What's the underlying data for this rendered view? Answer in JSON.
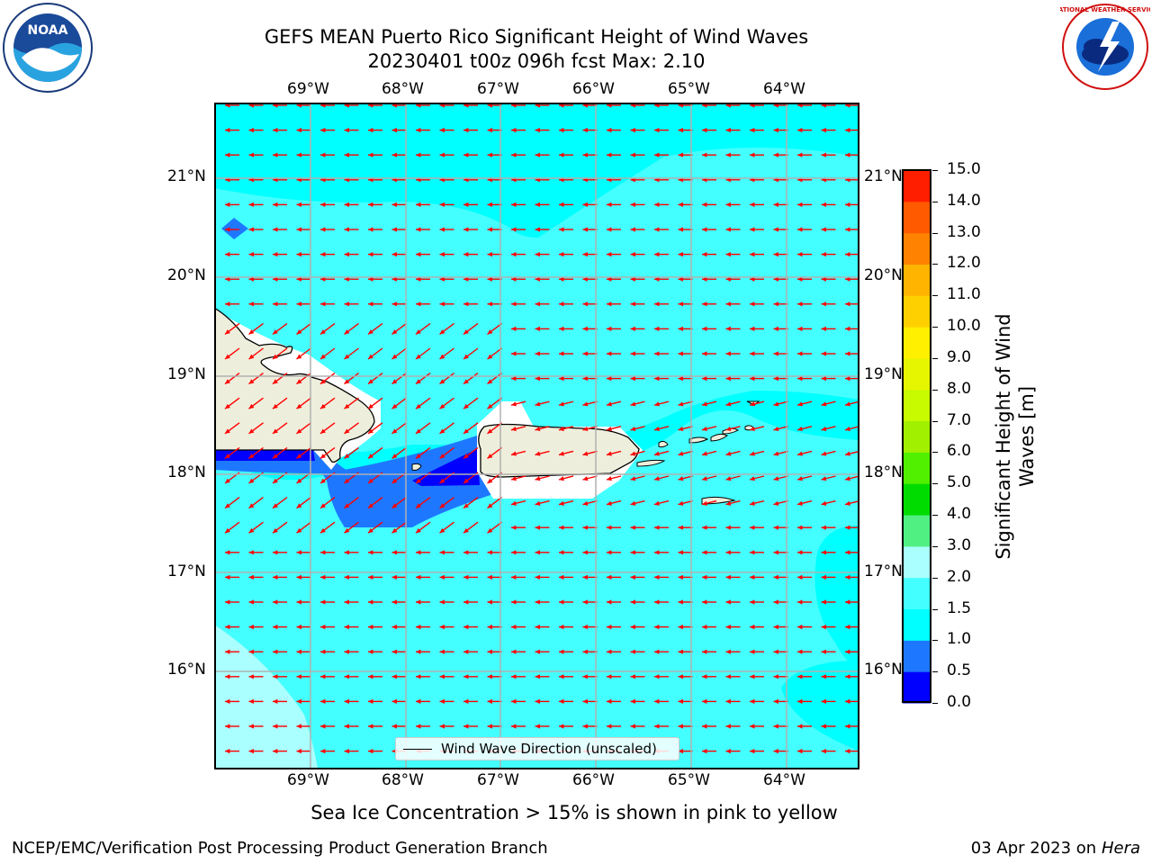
{
  "header": {
    "title_line1": "GEFS MEAN Puerto Rico Significant Height of Wind Waves",
    "title_line2": "20230401 t00z 096h fcst   Max: 2.10"
  },
  "logos": {
    "left": {
      "name": "NOAA",
      "ring_text": "NATIONAL OCEANIC AND ATMOSPHERIC ADMINISTRATION · U.S. DEPARTMENT OF COMMERCE"
    },
    "right": {
      "name": "NATIONAL WEATHER SERVICE"
    }
  },
  "map": {
    "lon_labels": [
      "69°W",
      "68°W",
      "67°W",
      "66°W",
      "65°W",
      "64°W"
    ],
    "lat_labels": [
      "21°N",
      "20°N",
      "19°N",
      "18°N",
      "17°N",
      "16°N"
    ],
    "legend_label": "Wind Wave Direction (unscaled)",
    "colors": {
      "land": "#eeeedc",
      "arrow": "#ff0000",
      "ocean_1_0_1_5": "#00ffff",
      "ocean_1_5_2_0": "#44ffff",
      "ocean_2_0_3_0": "#aaffff",
      "ocean_0_5_1_0": "#1e78ff",
      "ocean_0_0_0_5": "#0000ff"
    }
  },
  "colorbar": {
    "title": "Significant Height of Wind Waves [m]",
    "title_line1": "Significant Height of Wind",
    "title_line2": "Waves [m]",
    "tick_labels": [
      "0.0",
      "0.5",
      "1.0",
      "1.5",
      "2.0",
      "3.0",
      "4.0",
      "5.0",
      "6.0",
      "7.0",
      "8.0",
      "9.0",
      "10.0",
      "11.0",
      "12.0",
      "13.0",
      "14.0",
      "15.0"
    ],
    "colors": [
      "#0000ff",
      "#1e78ff",
      "#00ffff",
      "#44ffff",
      "#aaffff",
      "#50f082",
      "#00dc00",
      "#50f000",
      "#a0f000",
      "#c8fa00",
      "#e6f500",
      "#fff000",
      "#ffd000",
      "#ffb400",
      "#ff8200",
      "#ff5a00",
      "#ff1e00"
    ]
  },
  "notes": {
    "sea_ice": "Sea Ice Concentration > 15% is shown in pink to yellow"
  },
  "footer": {
    "left": "NCEP/EMC/Verification Post Processing Product Generation Branch",
    "right_prefix": "03 Apr 2023 on ",
    "right_machine": "Hera"
  }
}
